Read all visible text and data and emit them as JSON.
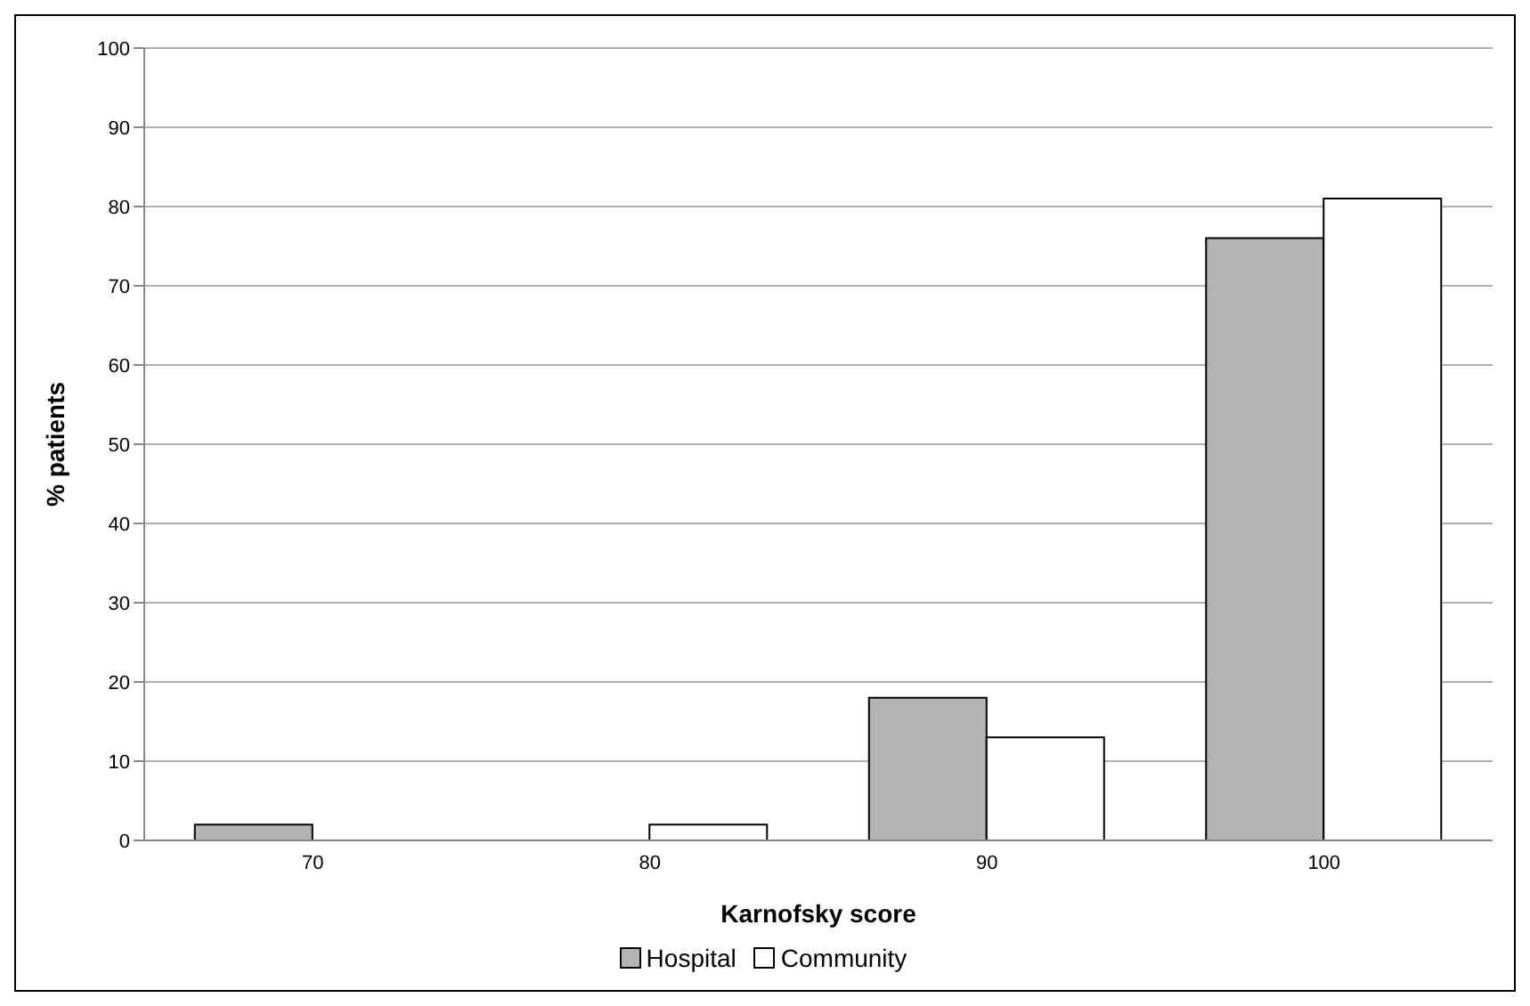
{
  "chart_data": {
    "type": "bar",
    "xlabel": "Karnofsky score",
    "ylabel": "% patients",
    "categories": [
      "70",
      "80",
      "90",
      "100"
    ],
    "series": [
      {
        "name": "Hospital",
        "color": "#b3b3b3",
        "values": [
          2,
          0,
          18,
          76
        ]
      },
      {
        "name": "Community",
        "color": "#ffffff",
        "values": [
          0,
          2,
          13,
          81
        ]
      }
    ],
    "ylim": [
      0,
      100
    ],
    "yticks": [
      0,
      10,
      20,
      30,
      40,
      50,
      60,
      70,
      80,
      90,
      100
    ],
    "grid": "y",
    "legend": "bottom"
  }
}
